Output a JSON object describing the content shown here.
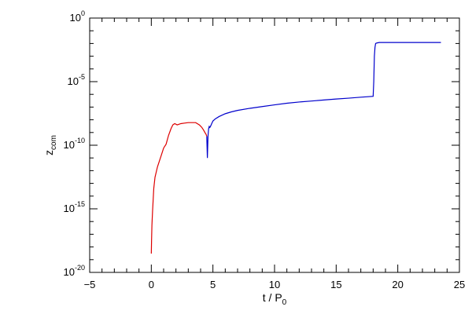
{
  "chart_data": {
    "type": "line",
    "title": "",
    "xlabel": "t / P",
    "xlabel_subscript": "0",
    "ylabel": "z",
    "ylabel_subscript": "com",
    "xlim": [
      -5,
      25
    ],
    "ylim": [
      1e-20,
      1
    ],
    "yscale": "log",
    "grid": false,
    "legend": "none",
    "x_ticks": [
      -5,
      0,
      5,
      10,
      15,
      20,
      25
    ],
    "x_tick_labels": [
      "−5",
      "0",
      "5",
      "10",
      "15",
      "20",
      "25"
    ],
    "y_ticks": [
      1e-20,
      1e-15,
      1e-10,
      1e-05,
      1
    ],
    "y_tick_labels": [
      {
        "base": "10",
        "exp": "-20"
      },
      {
        "base": "10",
        "exp": "-15"
      },
      {
        "base": "10",
        "exp": "-10"
      },
      {
        "base": "10",
        "exp": "-5"
      },
      {
        "base": "10",
        "exp": "0"
      }
    ],
    "series": [
      {
        "color": "#dd0000",
        "x": [
          0.0,
          0.02,
          0.05,
          0.1,
          0.2,
          0.3,
          0.5,
          0.8,
          1.0,
          1.2,
          1.4,
          1.6,
          1.75,
          1.9,
          2.1,
          2.4,
          2.7,
          3.0,
          3.3,
          3.6,
          3.9,
          4.1,
          4.25,
          4.35,
          4.45,
          4.5
        ],
        "y": [
          3e-19,
          3e-18,
          5e-17,
          6e-16,
          4e-14,
          3e-13,
          2e-12,
          1.5e-11,
          6e-11,
          1.2e-10,
          6e-10,
          2e-09,
          4e-09,
          5e-09,
          4e-09,
          5e-09,
          5.5e-09,
          6e-09,
          6e-09,
          6e-09,
          4e-09,
          2.5e-09,
          1.5e-09,
          1e-09,
          7e-10,
          5e-10
        ]
      },
      {
        "color": "#0000cc",
        "x": [
          4.5,
          4.55,
          4.6,
          4.65,
          4.7,
          4.75,
          4.8,
          4.9,
          5.0,
          5.2,
          5.5,
          6.0,
          6.5,
          7.0,
          8.0,
          9.0,
          10.0,
          11.0,
          12.0,
          13.0,
          14.0,
          15.0,
          16.0,
          17.0,
          18.0,
          18.05,
          18.1,
          18.15,
          18.2,
          18.3,
          18.5,
          19.0,
          20.0,
          22.0,
          23.5
        ],
        "y": [
          5e-10,
          1e-11,
          5e-10,
          2e-09,
          3e-09,
          2.5e-09,
          3e-09,
          5e-09,
          8e-09,
          1.2e-08,
          1.8e-08,
          3e-08,
          4.2e-08,
          5.5e-08,
          8e-08,
          1.1e-07,
          1.5e-07,
          2e-07,
          2.5e-07,
          3e-07,
          3.6e-07,
          4.3e-07,
          5e-07,
          6e-07,
          7e-07,
          1e-05,
          0.001,
          0.005,
          0.01,
          0.011,
          0.012,
          0.012,
          0.012,
          0.012,
          0.012
        ]
      }
    ]
  }
}
